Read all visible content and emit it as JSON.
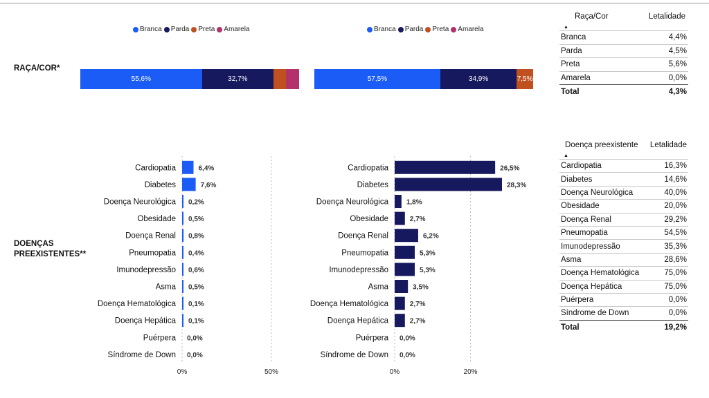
{
  "labels": {
    "raca": "RAÇA/COR*",
    "doencas_line1": "DOENÇAS",
    "doencas_line2": "PREEXISTENTES**"
  },
  "legend": [
    {
      "name": "Branca",
      "color": "#1a5cf5"
    },
    {
      "name": "Parda",
      "color": "#17195e"
    },
    {
      "name": "Preta",
      "color": "#c0501f"
    },
    {
      "name": "Amarela",
      "color": "#b4326c"
    }
  ],
  "chart_data": [
    {
      "type": "bar",
      "orientation": "horizontal-stacked",
      "categories": [
        "Branca",
        "Parda",
        "Preta",
        "Amarela"
      ],
      "values": [
        55.6,
        32.7,
        5.8,
        5.9
      ],
      "labels": [
        "55,6%",
        "32,7%",
        "",
        ""
      ]
    },
    {
      "type": "bar",
      "orientation": "horizontal-stacked",
      "categories": [
        "Branca",
        "Parda",
        "Preta",
        "Amarela"
      ],
      "values": [
        57.5,
        34.9,
        7.5,
        0.0
      ],
      "labels": [
        "57,5%",
        "34,9%",
        "7,5%",
        ""
      ]
    },
    {
      "type": "bar",
      "orientation": "horizontal",
      "color": "#1a5cf5",
      "categories": [
        "Cardiopatia",
        "Diabetes",
        "Doença Neurológica",
        "Obesidade",
        "Doença Renal",
        "Pneumopatia",
        "Imunodepressão",
        "Asma",
        "Doença Hematológica",
        "Doença Hepática",
        "Puérpera",
        "Síndrome de Down"
      ],
      "values": [
        6.4,
        7.6,
        0.2,
        0.5,
        0.8,
        0.4,
        0.6,
        0.5,
        0.1,
        0.1,
        0.0,
        0.0
      ],
      "labels": [
        "6,4%",
        "7,6%",
        "0,2%",
        "0,5%",
        "0,8%",
        "0,4%",
        "0,6%",
        "0,5%",
        "0,1%",
        "0,1%",
        "0,0%",
        "0,0%"
      ],
      "xlim": [
        0,
        50
      ],
      "ticks": [
        {
          "value": 0,
          "label": "0%"
        },
        {
          "value": 50,
          "label": "50%"
        }
      ]
    },
    {
      "type": "bar",
      "orientation": "horizontal",
      "color": "#17195e",
      "categories": [
        "Cardiopatia",
        "Diabetes",
        "Doença Neurológica",
        "Obesidade",
        "Doença Renal",
        "Pneumopatia",
        "Imunodepressão",
        "Asma",
        "Doença Hematológica",
        "Doença Hepática",
        "Puérpera",
        "Síndrome de Down"
      ],
      "values": [
        26.5,
        28.3,
        1.8,
        2.7,
        6.2,
        5.3,
        5.3,
        3.5,
        2.7,
        2.7,
        0.0,
        0.0
      ],
      "labels": [
        "26,5%",
        "28,3%",
        "1,8%",
        "2,7%",
        "6,2%",
        "5,3%",
        "5,3%",
        "3,5%",
        "2,7%",
        "2,7%",
        "0,0%",
        "0,0%"
      ],
      "xlim": [
        0,
        28.3
      ],
      "ticks": [
        {
          "value": 0,
          "label": "0%"
        },
        {
          "value": 20,
          "label": "20%"
        }
      ]
    }
  ],
  "tables": {
    "raca": {
      "col1": "Raça/Cor",
      "col2": "Letalidade",
      "rows": [
        {
          "name": "Branca",
          "value": "4,4%"
        },
        {
          "name": "Parda",
          "value": "4,5%"
        },
        {
          "name": "Preta",
          "value": "5,6%"
        },
        {
          "name": "Amarela",
          "value": "0,0%"
        }
      ],
      "total_label": "Total",
      "total_value": "4,3%"
    },
    "doenca": {
      "col1": "Doença preexistente",
      "col2": "Letalidade",
      "rows": [
        {
          "name": "Cardiopatia",
          "value": "16,3%"
        },
        {
          "name": "Diabetes",
          "value": "14,6%"
        },
        {
          "name": "Doença Neurológica",
          "value": "40,0%"
        },
        {
          "name": "Obesidade",
          "value": "20,0%"
        },
        {
          "name": "Doença Renal",
          "value": "29,2%"
        },
        {
          "name": "Pneumopatia",
          "value": "54,5%"
        },
        {
          "name": "Imunodepressão",
          "value": "35,3%"
        },
        {
          "name": "Asma",
          "value": "28,6%"
        },
        {
          "name": "Doença Hematológica",
          "value": "75,0%"
        },
        {
          "name": "Doença Hepática",
          "value": "75,0%"
        },
        {
          "name": "Puérpera",
          "value": "0,0%"
        },
        {
          "name": "Síndrome de Down",
          "value": "0,0%"
        }
      ],
      "total_label": "Total",
      "total_value": "19,2%"
    }
  }
}
